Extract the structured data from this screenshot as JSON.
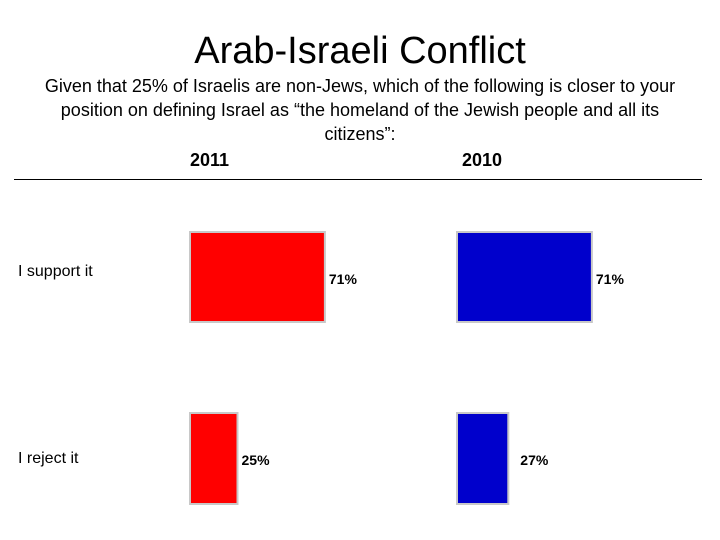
{
  "chart_data": {
    "type": "bar",
    "title": "Arab-Israeli Conflict",
    "subtitle": "Given that 25% of Israelis are non-Jews, which of the following is closer to your position on defining Israel as “the homeland of the Jewish people and all its citizens”:",
    "categories": [
      "I support it",
      "I reject it"
    ],
    "series": [
      {
        "name": "2011",
        "values": [
          71,
          25
        ],
        "labels": [
          "71%",
          "25%"
        ],
        "color": "#ff0000"
      },
      {
        "name": "2010",
        "values": [
          71,
          27
        ],
        "labels": [
          "71%",
          "27%"
        ],
        "color": "#0000cc"
      }
    ],
    "value_unit": "%",
    "orientation": "horizontal",
    "grid": false
  }
}
